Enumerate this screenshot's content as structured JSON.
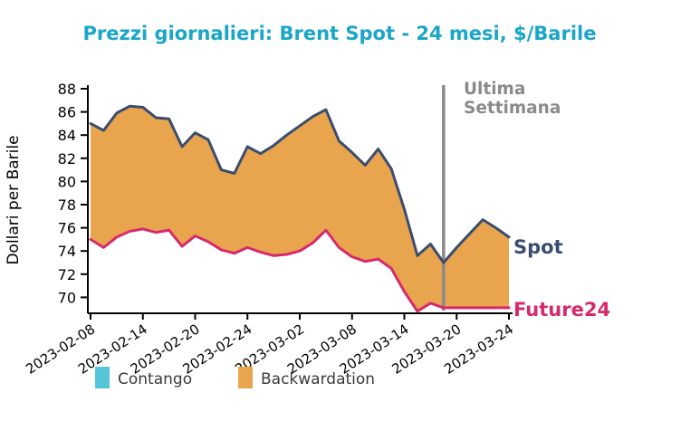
{
  "figure": {
    "title": "Prezzi giornalieri: Brent Spot - 24 mesi, $/Barile",
    "y_axis_label": "Dollari per Barile"
  },
  "annotations": {
    "vline_label_line1": "Ultima",
    "vline_label_line2": "Settimana",
    "spot_label": "Spot",
    "future_label": "Future24"
  },
  "legend": {
    "items": [
      {
        "label": "Contango",
        "color": "#55c6da"
      },
      {
        "label": "Backwardation",
        "color": "#e8a54e"
      }
    ]
  },
  "colors": {
    "title": "#1aa6c9",
    "spot_line": "#3b4d6e",
    "future_line": "#d62a6e",
    "backwardation_fill": "#e8a54e",
    "annotation_gray": "#8a8a8a",
    "axis": "#000000",
    "tick_text": "#000000",
    "legend_text": "#3a3a3a"
  },
  "chart_data": {
    "type": "area",
    "title": "Prezzi giornalieri: Brent Spot - 24 mesi, $/Barile",
    "xlabel": "",
    "ylabel": "Dollari per Barile",
    "grid": false,
    "legend_position": "bottom",
    "ylim": [
      68.6,
      88.3
    ],
    "y_ticks": [
      70,
      72,
      74,
      76,
      78,
      80,
      82,
      84,
      86,
      88
    ],
    "x": [
      "2023-02-08",
      "2023-02-09",
      "2023-02-10",
      "2023-02-13",
      "2023-02-14",
      "2023-02-15",
      "2023-02-16",
      "2023-02-17",
      "2023-02-20",
      "2023-02-21",
      "2023-02-22",
      "2023-02-23",
      "2023-02-24",
      "2023-02-27",
      "2023-02-28",
      "2023-03-01",
      "2023-03-02",
      "2023-03-03",
      "2023-03-06",
      "2023-03-07",
      "2023-03-08",
      "2023-03-09",
      "2023-03-10",
      "2023-03-13",
      "2023-03-14",
      "2023-03-15",
      "2023-03-16",
      "2023-03-17",
      "2023-03-20",
      "2023-03-21",
      "2023-03-22",
      "2023-03-23",
      "2023-03-24"
    ],
    "x_tick_labels": [
      "2023-02-08",
      "2023-02-14",
      "2023-02-20",
      "2023-02-24",
      "2023-03-02",
      "2023-03-08",
      "2023-03-14",
      "2023-03-20",
      "2023-03-24"
    ],
    "x_tick_indices": [
      0,
      4,
      8,
      12,
      16,
      20,
      24,
      28,
      32
    ],
    "series": [
      {
        "name": "Spot",
        "values": [
          85.0,
          84.4,
          85.9,
          86.5,
          86.4,
          85.5,
          85.4,
          83.0,
          84.2,
          83.6,
          81.0,
          80.7,
          83.0,
          82.4,
          83.1,
          84.0,
          84.8,
          85.6,
          86.2,
          83.5,
          82.5,
          81.4,
          82.8,
          81.1,
          77.6,
          73.6,
          74.6,
          73.0,
          74.3,
          75.5,
          76.7,
          76.0,
          75.2
        ]
      },
      {
        "name": "Future24",
        "values": [
          75.0,
          74.3,
          75.2,
          75.7,
          75.9,
          75.6,
          75.8,
          74.4,
          75.3,
          74.8,
          74.1,
          73.8,
          74.3,
          73.9,
          73.6,
          73.7,
          74.0,
          74.7,
          75.8,
          74.3,
          73.5,
          73.1,
          73.3,
          72.5,
          70.5,
          68.8,
          69.5,
          69.1,
          69.1,
          69.1,
          69.1,
          69.1,
          69.1
        ]
      }
    ],
    "fill_between": {
      "meaning_when_spot_above": "Backwardation",
      "meaning_when_spot_below": "Contango"
    },
    "vline": {
      "x": "2023-03-17",
      "index": 27,
      "label": "Ultima Settimana"
    }
  }
}
